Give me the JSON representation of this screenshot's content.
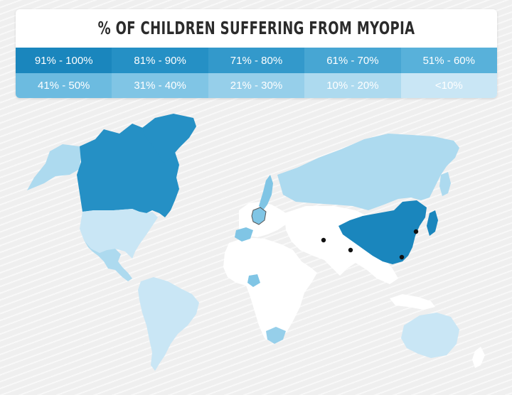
{
  "title": "% OF CHILDREN SUFFERING FROM MYOPIA",
  "legend": [
    {
      "label": "91% - 100%",
      "color": "#1a86bd"
    },
    {
      "label": "81% - 90%",
      "color": "#2590c5"
    },
    {
      "label": "71% - 80%",
      "color": "#3399cb"
    },
    {
      "label": "61% - 70%",
      "color": "#47a6d3"
    },
    {
      "label": "51% - 60%",
      "color": "#58b1da"
    },
    {
      "label": "41% - 50%",
      "color": "#6cbbe0"
    },
    {
      "label": "31% - 40%",
      "color": "#80c5e5"
    },
    {
      "label": "21% - 30%",
      "color": "#96cfea"
    },
    {
      "label": "10% - 20%",
      "color": "#addaef"
    },
    {
      "label": "<10%",
      "color": "#c9e6f5"
    }
  ],
  "map": {
    "colors": {
      "canada": "#2590c5",
      "greenland": "#2590c5",
      "usa": "#c9e6f5",
      "alaska": "#addaef",
      "mexico": "#addaef",
      "south_america": "#c9e6f5",
      "russia": "#addaef",
      "scandinavia": "#80c5e5",
      "germany": "#80c5e5",
      "iberia": "#80c5e5",
      "china": "#1a86bd",
      "japan": "#1a86bd",
      "south_africa": "#96cfea",
      "australia": "#c9e6f5",
      "west_africa_spot": "#80c5e5",
      "unclassified": "#ffffff"
    }
  }
}
